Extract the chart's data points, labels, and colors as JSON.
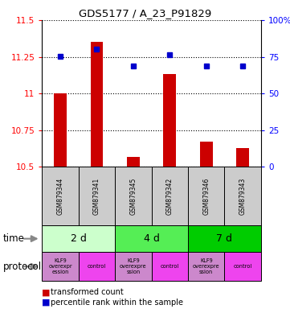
{
  "title": "GDS5177 / A_23_P91829",
  "samples": [
    "GSM879344",
    "GSM879341",
    "GSM879345",
    "GSM879342",
    "GSM879346",
    "GSM879343"
  ],
  "bar_values": [
    11.0,
    11.35,
    10.57,
    11.13,
    10.67,
    10.63
  ],
  "bar_baseline": 10.5,
  "percentile_values": [
    75.5,
    80.5,
    68.5,
    76.5,
    69.0,
    69.0
  ],
  "ylim_left": [
    10.5,
    11.5
  ],
  "ylim_right": [
    0,
    100
  ],
  "yticks_left": [
    10.5,
    10.75,
    11.0,
    11.25,
    11.5
  ],
  "ytick_labels_left": [
    "10.5",
    "10.75",
    "11",
    "11.25",
    "11.5"
  ],
  "yticks_right": [
    0,
    25,
    50,
    75,
    100
  ],
  "ytick_labels_right": [
    "0",
    "25",
    "50",
    "75",
    "100%"
  ],
  "bar_color": "#cc0000",
  "dot_color": "#0000cc",
  "time_labels": [
    "2 d",
    "4 d",
    "7 d"
  ],
  "time_colors": [
    "#ccffcc",
    "#55ee55",
    "#00cc00"
  ],
  "protocol_labels": [
    "KLF9\noverexpr\nession",
    "control",
    "KLF9\noverexpre\nssion",
    "control",
    "KLF9\noverexpre\nssion",
    "control"
  ],
  "protocol_colors_left": [
    "#dd88dd",
    "#dd88dd",
    "#dd88dd"
  ],
  "protocol_colors_right": [
    "#ee44ee",
    "#ee44ee",
    "#ee44ee"
  ],
  "legend_bar_label": "transformed count",
  "legend_dot_label": "percentile rank within the sample",
  "sample_bg": "#cccccc",
  "chart_bg": "#ffffff"
}
